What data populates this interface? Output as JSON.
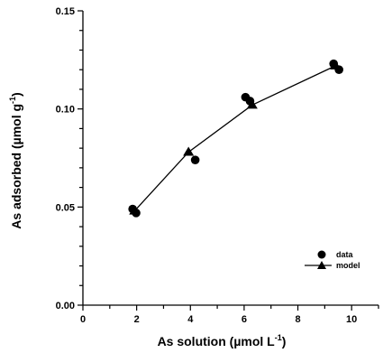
{
  "chart_data": {
    "type": "scatter",
    "xlabel": {
      "main": "As solution (µmol L",
      "sup": "-1",
      "close": ")"
    },
    "ylabel": {
      "main": "As adsorbed (µmol g",
      "sup": "-1",
      "close": ")"
    },
    "xlim": [
      0,
      11
    ],
    "ylim": [
      0,
      0.15
    ],
    "xticks": [
      0,
      2,
      4,
      6,
      8,
      10
    ],
    "xtick_labels": [
      "0",
      "2",
      "4",
      "6",
      "8",
      "10"
    ],
    "yticks": [
      0,
      0.05,
      0.1,
      0.15
    ],
    "ytick_labels": [
      "0.00",
      "0.05",
      "0.10",
      "0.15"
    ],
    "grid": false,
    "legend_position": "bottom-right",
    "series": [
      {
        "name": "data",
        "marker": "circle",
        "points": [
          {
            "x": 1.85,
            "y": 0.049
          },
          {
            "x": 1.98,
            "y": 0.047
          },
          {
            "x": 4.18,
            "y": 0.074
          },
          {
            "x": 6.05,
            "y": 0.106
          },
          {
            "x": 6.22,
            "y": 0.104
          },
          {
            "x": 9.33,
            "y": 0.123
          },
          {
            "x": 9.53,
            "y": 0.12
          }
        ]
      },
      {
        "name": "model",
        "marker": "triangle",
        "line": true,
        "points": [
          {
            "x": 1.92,
            "y": 0.048
          },
          {
            "x": 3.93,
            "y": 0.078
          },
          {
            "x": 6.3,
            "y": 0.102
          },
          {
            "x": 9.4,
            "y": 0.122
          }
        ]
      }
    ]
  }
}
